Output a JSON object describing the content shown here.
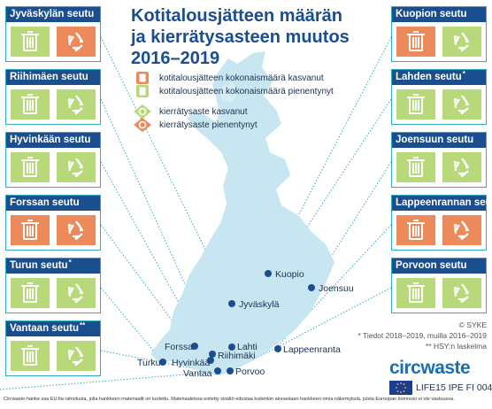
{
  "title": {
    "line1": "Kotitalousjätteen määrän",
    "line2": "ja kierrätysasteen muutos",
    "line3": "2016–2019"
  },
  "legend": {
    "waste_increased": "kotitalousjätteen kokonaismäärä kasvanut",
    "waste_decreased": "kotitalousjätteen kokonaismäärä pienentynyt",
    "recycling_increased": "kierrätysaste kasvanut",
    "recycling_decreased": "kierrätysaste pienentynyt"
  },
  "colors": {
    "increase_bad": "#ed8a5c",
    "decrease_good": "#b8d97a",
    "header": "#1a4e8e",
    "sea_map": "#c7e6f1",
    "frame": "#2fa8c8"
  },
  "regions_left": [
    {
      "name": "Jyväskylän seutu",
      "note": "",
      "waste": "decrease",
      "recycling": "decrease"
    },
    {
      "name": "Riihimäen seutu",
      "note": "",
      "waste": "decrease",
      "recycling": "increase"
    },
    {
      "name": "Hyvinkään seutu",
      "note": "",
      "waste": "decrease",
      "recycling": "increase"
    },
    {
      "name": "Forssan seutu",
      "note": "",
      "waste": "increase",
      "recycling": "decrease"
    },
    {
      "name": "Turun seutu",
      "note": "*",
      "waste": "decrease",
      "recycling": "increase"
    },
    {
      "name": "Vantaan seutu",
      "note": "**",
      "waste": "decrease",
      "recycling": "increase"
    }
  ],
  "regions_right": [
    {
      "name": "Kuopion seutu",
      "note": "",
      "waste": "increase",
      "recycling": "increase"
    },
    {
      "name": "Lahden seutu",
      "note": "*",
      "waste": "decrease",
      "recycling": "increase"
    },
    {
      "name": "Joensuun seutu",
      "note": "",
      "waste": "decrease",
      "recycling": "increase"
    },
    {
      "name": "Lappeenrannan seutu",
      "note": "",
      "waste": "increase",
      "recycling": "decrease"
    },
    {
      "name": "Porvoon seutu",
      "note": "",
      "waste": "decrease",
      "recycling": "increase"
    }
  ],
  "cities": {
    "kuopio": "Kuopio",
    "joensuu": "Joensuu",
    "jyvaskyla": "Jyväskylä",
    "forssa": "Forssa",
    "lahti": "Lahti",
    "turku": "Turku",
    "hyvinkaa": "Hyvinkää",
    "riihimaki": "Riihimäki",
    "lappeenranta": "Lappeenranta",
    "vantaa": "Vantaa",
    "porvoo": "Porvoo"
  },
  "notes": {
    "source": "© SYKE",
    "star1": "* Tiedot 2018–2019, muilla 2016–2019",
    "star2": "** HSY:n laskelma"
  },
  "logo": {
    "brand": "circwaste",
    "life": "LIFE15 IPE FI 004"
  },
  "footer": "Circwaste-hanke saa EU:lta rahoitusta, jolla hankkeen materiaalit on tuotettu. Materiaaleissa esitetty sisältö edustaa kuitenkin ainoastaan hankkeen omia näkemyksiä, joista Euroopan komissio ei ole vastuussa."
}
